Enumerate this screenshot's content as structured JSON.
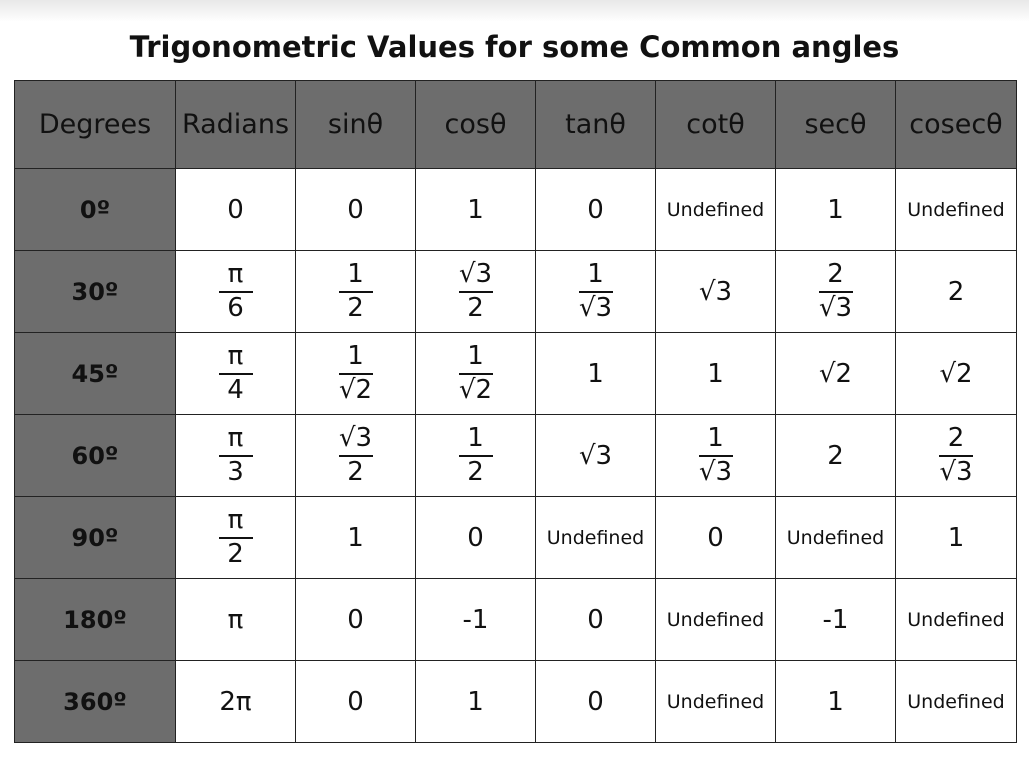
{
  "title": "Trigonometric Values for some Common angles",
  "table": {
    "header": [
      "Degrees",
      "Radians",
      "sinθ",
      "cosθ",
      "tanθ",
      "cotθ",
      "secθ",
      "cosecθ"
    ],
    "rows": [
      [
        "0º",
        "0",
        "0",
        "1",
        "0",
        "Undefined",
        "1",
        "Undefined"
      ],
      [
        "30º",
        {
          "num": "π",
          "den": "6"
        },
        {
          "num": "1",
          "den": "2"
        },
        {
          "num": "√3",
          "den": "2"
        },
        {
          "num": "1",
          "den": "√3"
        },
        "√3",
        {
          "num": "2",
          "den": "√3"
        },
        "2"
      ],
      [
        "45º",
        {
          "num": "π",
          "den": "4"
        },
        {
          "num": "1",
          "den": "√2"
        },
        {
          "num": "1",
          "den": "√2"
        },
        "1",
        "1",
        "√2",
        "√2"
      ],
      [
        "60º",
        {
          "num": "π",
          "den": "3"
        },
        {
          "num": "√3",
          "den": "2"
        },
        {
          "num": "1",
          "den": "2"
        },
        "√3",
        {
          "num": "1",
          "den": "√3"
        },
        "2",
        {
          "num": "2",
          "den": "√3"
        }
      ],
      [
        "90º",
        {
          "num": "π",
          "den": "2"
        },
        "1",
        "0",
        "Undefined",
        "0",
        "Undefined",
        "1"
      ],
      [
        "180º",
        "π",
        "0",
        "-1",
        "0",
        "Undefined",
        "-1",
        "Undefined"
      ],
      [
        "360º",
        "2π",
        "0",
        "1",
        "0",
        "Undefined",
        "1",
        "Undefined"
      ]
    ]
  }
}
